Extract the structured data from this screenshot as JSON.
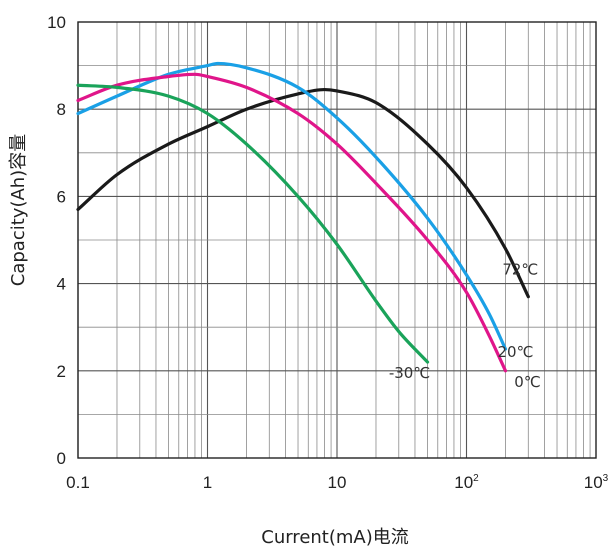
{
  "chart_data": {
    "type": "line",
    "xlabel": "Current(mA)电流",
    "ylabel": "Capacity(Ah)容量",
    "x_scale": "log",
    "xlim": [
      0.1,
      1000
    ],
    "ylim": [
      0,
      10
    ],
    "x_ticks": [
      {
        "value": 0.1,
        "label": "0.1",
        "sup": ""
      },
      {
        "value": 1,
        "label": "1",
        "sup": ""
      },
      {
        "value": 10,
        "label": "10",
        "sup": ""
      },
      {
        "value": 100,
        "label": "10",
        "sup": "2"
      },
      {
        "value": 1000,
        "label": "10",
        "sup": "3"
      }
    ],
    "y_ticks": [
      0,
      2,
      4,
      6,
      8,
      10
    ],
    "grid": true,
    "series": [
      {
        "name": "72℃",
        "color": "#1a1a1a",
        "x": [
          0.1,
          0.2,
          0.5,
          1,
          2,
          5,
          8,
          10,
          20,
          50,
          100,
          200,
          300
        ],
        "y": [
          5.7,
          6.5,
          7.2,
          7.6,
          8.0,
          8.35,
          8.45,
          8.42,
          8.15,
          7.2,
          6.2,
          4.8,
          3.7
        ]
      },
      {
        "name": "20℃",
        "color": "#1aa0e6",
        "x": [
          0.1,
          0.2,
          0.5,
          1,
          1.2,
          2,
          5,
          10,
          20,
          50,
          100,
          150,
          200
        ],
        "y": [
          7.9,
          8.3,
          8.8,
          9.0,
          9.05,
          8.95,
          8.5,
          7.8,
          6.9,
          5.5,
          4.2,
          3.3,
          2.5
        ]
      },
      {
        "name": "0℃",
        "color": "#e0158a",
        "x": [
          0.1,
          0.2,
          0.5,
          0.8,
          1,
          2,
          5,
          10,
          20,
          50,
          100,
          150,
          200
        ],
        "y": [
          8.2,
          8.55,
          8.75,
          8.8,
          8.75,
          8.5,
          7.9,
          7.2,
          6.3,
          5.0,
          3.8,
          2.8,
          2.0
        ]
      },
      {
        "name": "-30℃",
        "color": "#1aa35a",
        "x": [
          0.1,
          0.2,
          0.5,
          1,
          2,
          5,
          10,
          20,
          30,
          50
        ],
        "y": [
          8.55,
          8.5,
          8.3,
          7.9,
          7.2,
          6.0,
          4.9,
          3.6,
          2.9,
          2.2
        ]
      }
    ]
  }
}
